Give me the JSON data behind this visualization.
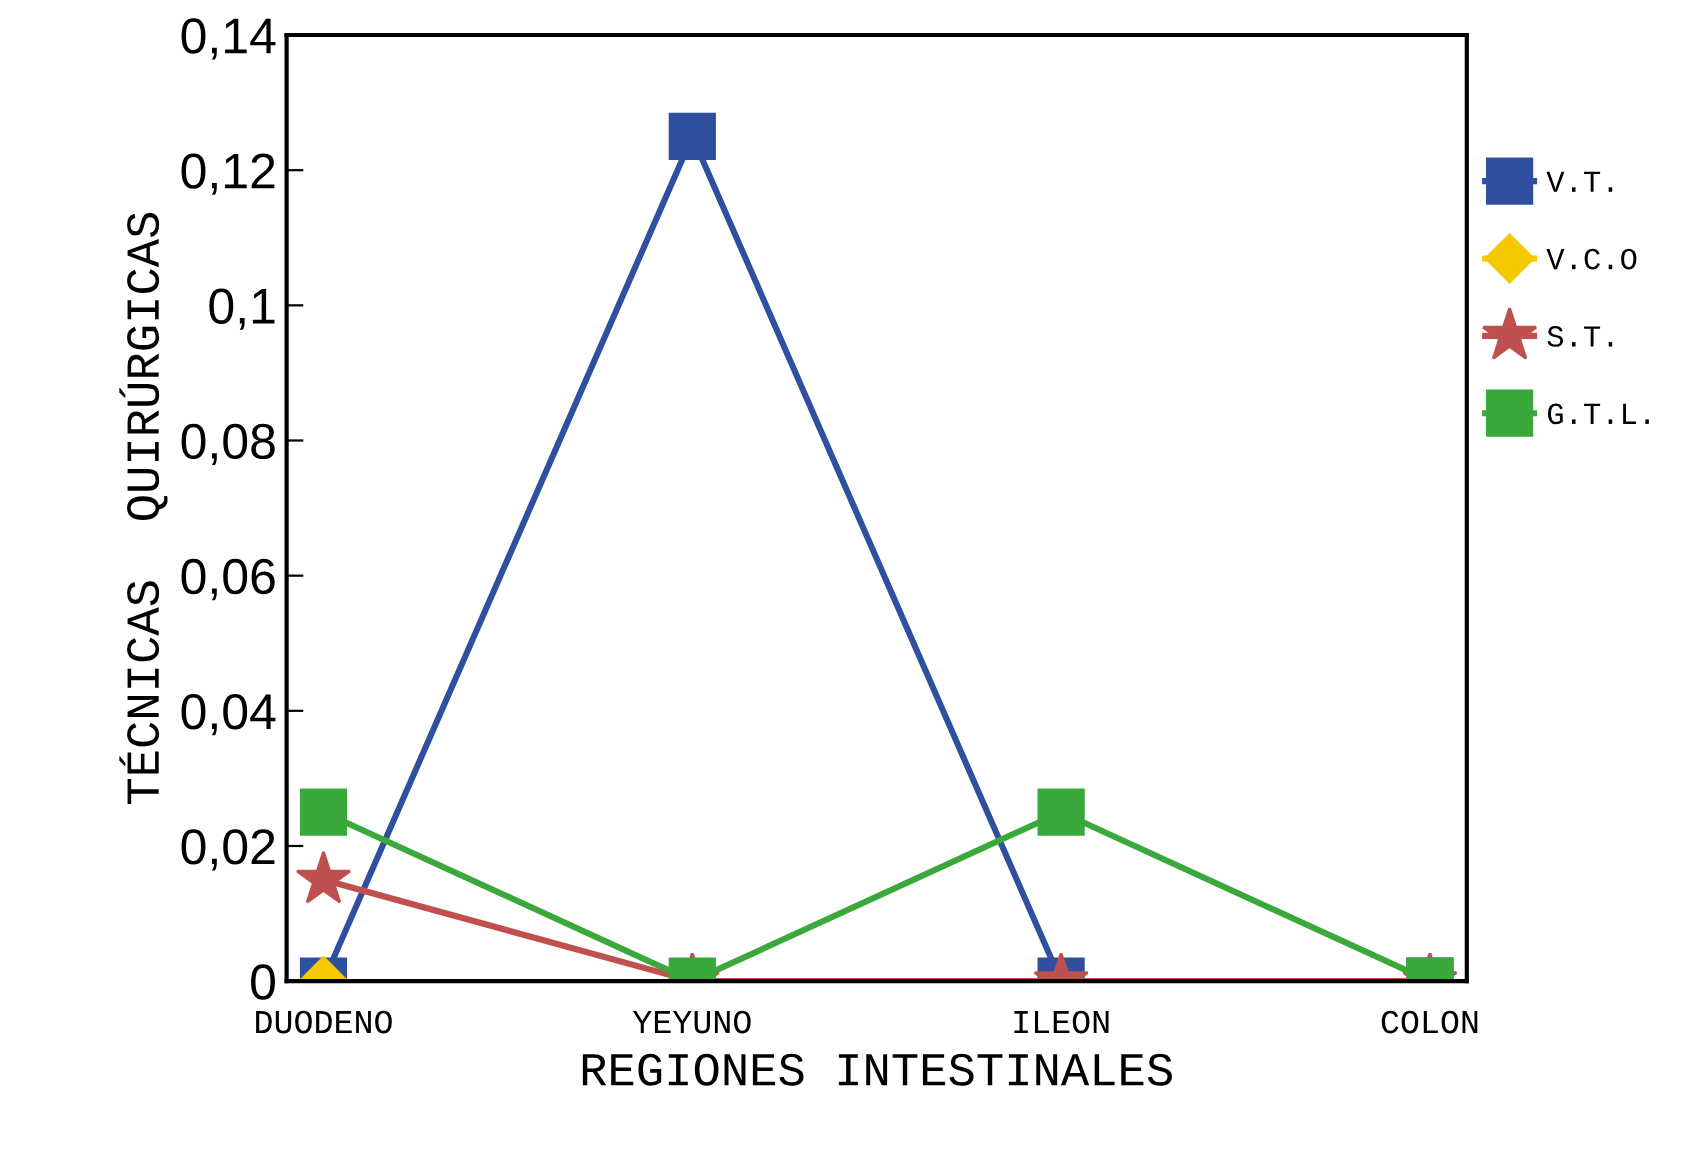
{
  "chart_data": {
    "type": "line",
    "xlabel": "REGIONES INTESTINALES",
    "ylabel": "TÉCNICAS  QUIRÚRGICAS",
    "categories": [
      "DUODENO",
      "YEYUNO",
      "ILEON",
      "COLON"
    ],
    "series": [
      {
        "name": "V.T.",
        "color": "#2f4f9f",
        "marker": "square",
        "values": [
          0,
          0.125,
          0,
          0
        ]
      },
      {
        "name": "V.C.O",
        "color": "#f5c800",
        "marker": "diamond",
        "values": [
          0,
          null,
          null,
          null
        ]
      },
      {
        "name": "S.T.",
        "color": "#c0504d",
        "marker": "star",
        "values": [
          0.015,
          0,
          0,
          0
        ]
      },
      {
        "name": "G.T.L.",
        "color": "#3aa83a",
        "marker": "square",
        "values": [
          0.025,
          0,
          0.025,
          0
        ]
      }
    ],
    "ylim": [
      0,
      0.14
    ],
    "yticks": [
      0,
      {
        "value": 0.02,
        "label": "0,02"
      },
      {
        "value": 0.04,
        "label": "0,04"
      },
      {
        "value": 0.06,
        "label": "0,06"
      },
      {
        "value": 0.08,
        "label": "0,08"
      },
      {
        "value": 0.1,
        "label": "0,1"
      },
      {
        "value": 0.12,
        "label": "0,12"
      },
      {
        "value": 0.14,
        "label": "0,14"
      }
    ],
    "grid": false,
    "legend": "right",
    "line_style": "solid"
  }
}
